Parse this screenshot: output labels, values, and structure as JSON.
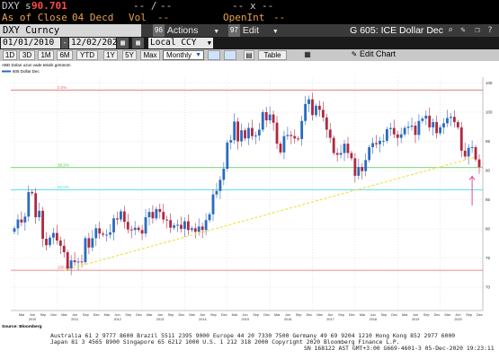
{
  "header": {
    "ticker": "DXY",
    "price_prefix": "s",
    "price": "90.701",
    "change_placeholder": "-- /",
    "change_placeholder2": "--",
    "x_label": "x",
    "x_placeholder_left": "--",
    "x_placeholder_right": "--",
    "as_of_close": "As of Close",
    "close_date": "04 Decd",
    "vol_label": "Vol",
    "vol_value": "--",
    "open_int_label": "OpenInt",
    "open_int_value": "--"
  },
  "toolbar": {
    "security": "DXY Curncy",
    "actions_num": "96",
    "actions_label": "Actions",
    "edit_num": "97",
    "edit_label": "Edit",
    "title": "G 605: ICE Dollar Dec",
    "icons": [
      "search-icon",
      "edit-icon",
      "copy-icon",
      "help-icon"
    ]
  },
  "range": {
    "start": "01/01/2010",
    "end": "12/02/2020",
    "currency": "Local CCY"
  },
  "periods": {
    "buttons": [
      "1D",
      "3D",
      "1M",
      "6M",
      "YTD",
      "1Y",
      "5Y",
      "Max"
    ],
    "frequency": "Monthly",
    "table_label": "Table",
    "edit_chart_label": "Edit Chart"
  },
  "chart_data": {
    "type": "candlestick",
    "title": "ABD Doları uzun vade teknik görünüm",
    "legend": "605 Dollar Dec",
    "source": "Source: Bloomberg",
    "ylim": [
      66,
      106
    ],
    "fib_levels": [
      {
        "label": "0.0%",
        "value": 103.8,
        "color": "#e86a6a"
      },
      {
        "label": "38.2%",
        "value": 90.5,
        "color": "#4cc84c"
      },
      {
        "label": "50.0%",
        "value": 86.7,
        "color": "#4adce8"
      },
      {
        "label": "100.0%",
        "value": 72.9,
        "color": "#e86a6a"
      }
    ],
    "x_tick_labels": [
      "Mar",
      "Jun",
      "Sep",
      "Dec",
      "Mar",
      "Jun",
      "Sep",
      "Dec",
      "Mar",
      "Jun",
      "Sep",
      "Dec",
      "Mar",
      "Jun",
      "Sep",
      "Dec",
      "Mar",
      "Jun",
      "Sep",
      "Dec",
      "Mar",
      "Jun",
      "Sep",
      "Dec",
      "Mar",
      "Jun",
      "Sep",
      "Dec",
      "Mar",
      "Jun",
      "Sep",
      "Dec",
      "Mar",
      "Jun",
      "Sep",
      "Dec",
      "Mar",
      "Jun",
      "Sep",
      "Dec",
      "Mar",
      "Jun",
      "Sep",
      "Dec"
    ],
    "year_labels": [
      "2010",
      "2011",
      "2012",
      "2013",
      "2014",
      "2015",
      "2016",
      "2017",
      "2018",
      "2019",
      "2020"
    ],
    "closes": [
      80.1,
      81.6,
      81.1,
      82.1,
      86.3,
      86.1,
      82.0,
      83.1,
      78.3,
      77.2,
      78.5,
      79.3,
      78.0,
      77.1,
      76.0,
      73.2,
      74.6,
      74.3,
      74.4,
      74.3,
      78.4,
      76.8,
      78.4,
      80.1,
      79.2,
      79.0,
      79.0,
      79.4,
      81.8,
      81.6,
      83.0,
      81.2,
      79.9,
      79.8,
      80.2,
      79.8,
      79.2,
      82.0,
      82.9,
      81.8,
      83.4,
      82.9,
      81.6,
      81.5,
      80.2,
      80.6,
      80.7,
      80.0,
      81.3,
      79.8,
      80.1,
      79.5,
      80.4,
      79.8,
      81.5,
      82.5,
      85.9,
      86.5,
      88.4,
      90.3,
      94.8,
      95.2,
      98.4,
      95.0,
      96.9,
      95.5,
      97.3,
      95.9,
      96.0,
      97.0,
      100.0,
      98.6,
      99.6,
      98.2,
      94.6,
      93.1,
      95.9,
      96.1,
      95.9,
      95.5,
      95.4,
      98.5,
      101.4,
      102.2,
      99.5,
      101.1,
      100.4,
      99.1,
      97.0,
      95.6,
      93.0,
      92.7,
      93.0,
      94.6,
      93.0,
      92.1,
      89.1,
      90.6,
      89.9,
      91.8,
      94.0,
      94.7,
      94.5,
      95.1,
      95.1,
      97.1,
      97.3,
      96.2,
      95.6,
      96.2,
      97.3,
      97.5,
      97.7,
      96.1,
      98.5,
      98.9,
      99.4,
      97.4,
      98.3,
      96.4,
      97.4,
      98.1,
      99.0,
      99.2,
      98.3,
      97.4,
      93.4,
      92.4,
      93.9,
      94.0,
      91.9,
      90.6
    ]
  },
  "footer": {
    "line1": "Australia 61 2 9777 8600 Brazil 5511 2395 9000 Europe 44 20 7330 7500 Germany 49 69 9204 1210 Hong Kong 852 2977 6000",
    "line2": "Japan 81 3 4565 8900        Singapore 65 6212 1000       U.S. 1 212 318 2000        Copyright 2020 Bloomberg Finance L.P.",
    "line3": "SN 168122 AST  GMT+3:00 G669-4601-3 05-Dec-2020 19:23:11"
  }
}
